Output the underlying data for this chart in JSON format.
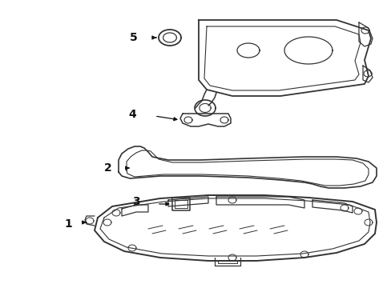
{
  "background_color": "#ffffff",
  "line_color": "#333333",
  "line_width": 1.2,
  "label_fontsize": 10,
  "figsize": [
    4.89,
    3.6
  ],
  "dpi": 100
}
